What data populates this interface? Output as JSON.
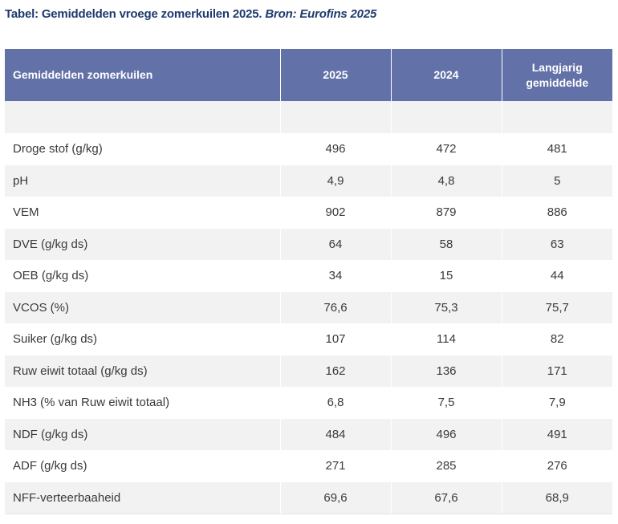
{
  "caption": {
    "title": "Tabel: Gemiddelden vroege zomerkuilen 2025.",
    "source": "Bron: Eurofins 2025"
  },
  "table": {
    "headers": [
      "Gemiddelden zomerkuilen",
      "2025",
      "2024",
      "Langjarig gemiddelde"
    ],
    "rows": [
      [
        "Droge stof (g/kg)",
        "496",
        "472",
        "481"
      ],
      [
        "pH",
        "4,9",
        "4,8",
        "5"
      ],
      [
        "VEM",
        "902",
        "879",
        "886"
      ],
      [
        "DVE (g/kg ds)",
        "64",
        "58",
        "63"
      ],
      [
        "OEB (g/kg ds)",
        "34",
        "15",
        "44"
      ],
      [
        "VCOS (%)",
        "76,6",
        "75,3",
        "75,7"
      ],
      [
        "Suiker (g/kg ds)",
        "107",
        "114",
        "82"
      ],
      [
        "Ruw eiwit totaal (g/kg ds)",
        "162",
        "136",
        "171"
      ],
      [
        "NH3 (% van Ruw eiwit totaal)",
        "6,8",
        "7,5",
        "7,9"
      ],
      [
        "NDF (g/kg ds)",
        "484",
        "496",
        "491"
      ],
      [
        "ADF (g/kg ds)",
        "271",
        "285",
        "276"
      ],
      [
        "NFF-verteerbaaheid",
        "69,6",
        "67,6",
        "68,9"
      ]
    ]
  },
  "colors": {
    "header_background": "#6271a7",
    "header_text": "#ffffff",
    "caption_text": "#1d3a6e",
    "row_shade": "#f2f2f2"
  }
}
